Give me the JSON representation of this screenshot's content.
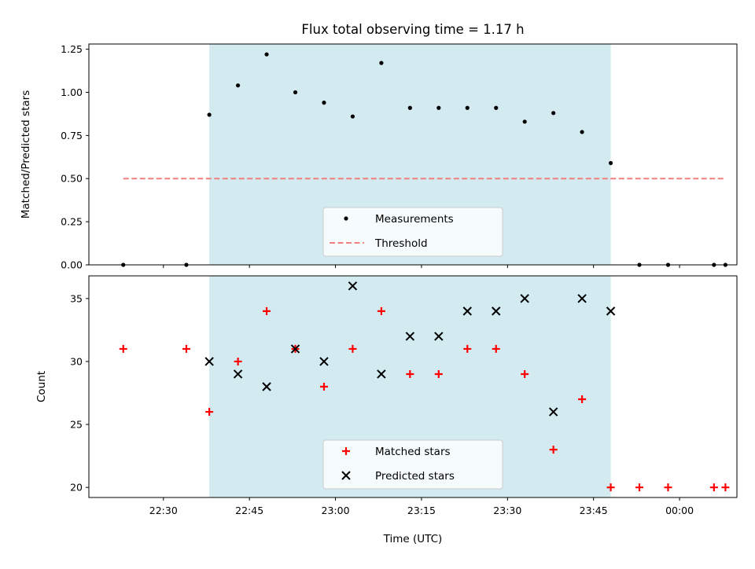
{
  "chart_data": [
    {
      "type": "scatter",
      "title": "Flux total observing time = 1.17 h",
      "ylabel": "Matched/Predicted stars",
      "xlabel": "",
      "xlim": [
        "22:17",
        "00:10"
      ],
      "ylim": [
        0,
        1.28
      ],
      "yticks": [
        "0.00",
        "0.25",
        "0.50",
        "0.75",
        "1.00",
        "1.25"
      ],
      "shaded_band": {
        "x0": "22:38",
        "x1": "23:48",
        "color": "#d3eaf1"
      },
      "series": [
        {
          "name": "Measurements",
          "marker": "dot",
          "color": "#000000",
          "points": [
            [
              "22:23",
              0
            ],
            [
              "22:34",
              0
            ],
            [
              "22:38",
              0.87
            ],
            [
              "22:43",
              1.04
            ],
            [
              "22:48",
              1.22
            ],
            [
              "22:53",
              1.0
            ],
            [
              "22:58",
              0.94
            ],
            [
              "23:03",
              0.86
            ],
            [
              "23:08",
              1.17
            ],
            [
              "23:13",
              0.91
            ],
            [
              "23:18",
              0.91
            ],
            [
              "23:23",
              0.91
            ],
            [
              "23:28",
              0.91
            ],
            [
              "23:33",
              0.83
            ],
            [
              "23:38",
              0.88
            ],
            [
              "23:43",
              0.77
            ],
            [
              "23:48",
              0.59
            ],
            [
              "23:53",
              0
            ],
            [
              "23:58",
              0
            ],
            [
              "00:06",
              0
            ],
            [
              "00:08",
              0
            ]
          ]
        },
        {
          "name": "Threshold",
          "marker": "dashed-line",
          "color": "#f08080",
          "points": [
            [
              "22:23",
              0.5
            ],
            [
              "00:08",
              0.5
            ]
          ]
        }
      ],
      "legend": "lower-center"
    },
    {
      "type": "scatter",
      "title": "",
      "ylabel": "Count",
      "xlabel": "Time (UTC)",
      "xlim": [
        "22:17",
        "00:10"
      ],
      "ylim": [
        19.2,
        36.8
      ],
      "yticks": [
        "20",
        "25",
        "30",
        "35"
      ],
      "xticks": [
        "22:30",
        "22:45",
        "23:00",
        "23:15",
        "23:30",
        "23:45",
        "00:00"
      ],
      "shaded_band": {
        "x0": "22:38",
        "x1": "23:48",
        "color": "#d3eaf1"
      },
      "series": [
        {
          "name": "Matched stars",
          "marker": "plus",
          "color": "#ff0000",
          "points": [
            [
              "22:23",
              31
            ],
            [
              "22:34",
              31
            ],
            [
              "22:38",
              26
            ],
            [
              "22:43",
              30
            ],
            [
              "22:48",
              34
            ],
            [
              "22:53",
              31
            ],
            [
              "22:58",
              28
            ],
            [
              "23:03",
              31
            ],
            [
              "23:08",
              34
            ],
            [
              "23:13",
              29
            ],
            [
              "23:18",
              29
            ],
            [
              "23:23",
              31
            ],
            [
              "23:28",
              31
            ],
            [
              "23:33",
              29
            ],
            [
              "23:38",
              23
            ],
            [
              "23:43",
              27
            ],
            [
              "23:48",
              20
            ],
            [
              "23:53",
              20
            ],
            [
              "23:58",
              20
            ],
            [
              "00:06",
              20
            ],
            [
              "00:08",
              20
            ]
          ]
        },
        {
          "name": "Predicted stars",
          "marker": "x",
          "color": "#000000",
          "points": [
            [
              "22:38",
              30
            ],
            [
              "22:43",
              29
            ],
            [
              "22:48",
              28
            ],
            [
              "22:53",
              31
            ],
            [
              "22:58",
              30
            ],
            [
              "23:03",
              36
            ],
            [
              "23:08",
              29
            ],
            [
              "23:13",
              32
            ],
            [
              "23:18",
              32
            ],
            [
              "23:23",
              34
            ],
            [
              "23:28",
              34
            ],
            [
              "23:33",
              35
            ],
            [
              "23:38",
              26
            ],
            [
              "23:43",
              35
            ],
            [
              "23:48",
              34
            ]
          ]
        }
      ],
      "legend": "lower-center"
    }
  ]
}
